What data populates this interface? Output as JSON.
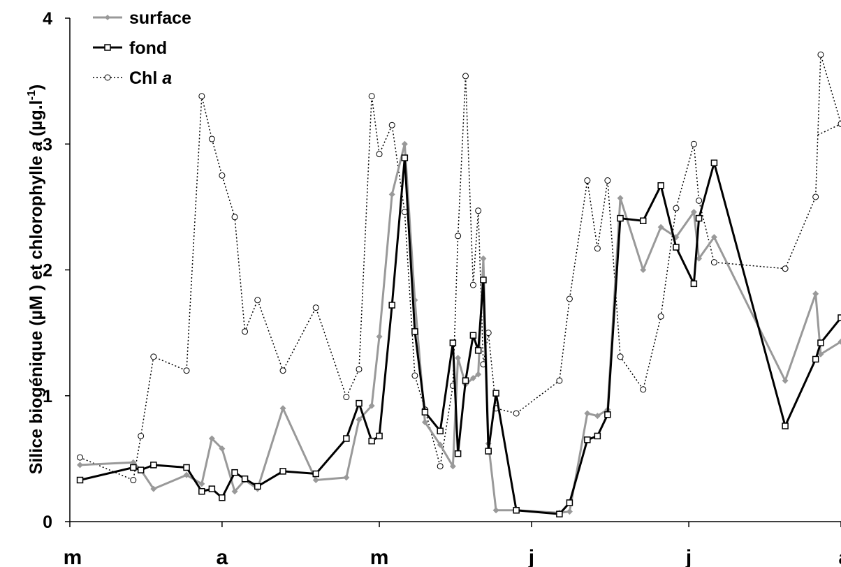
{
  "chart_data": {
    "type": "line",
    "ylabel": "Silice biogénique (µM ) et chlorophylle",
    "ylabel_italic": "a",
    "ylabel_unit": "(µg.l",
    "ylabel_sup": "-1",
    "ylabel_close": ")",
    "ylim": [
      0,
      4
    ],
    "yticks": [
      "0",
      "1",
      "2",
      "3",
      "4"
    ],
    "xlim": [
      0,
      152
    ],
    "month_labels": [
      "m",
      "a",
      "m",
      "j",
      "j",
      "a"
    ],
    "month_positions": [
      0,
      30,
      61,
      91,
      122,
      152
    ],
    "grid": false,
    "legend_position": "top-left",
    "series": [
      {
        "name": "surface",
        "color": "#999999",
        "line_style": "solid",
        "marker": "diamond",
        "x": [
          2,
          12.5,
          14,
          16.5,
          23,
          26,
          28,
          30,
          32.5,
          34.5,
          37,
          42,
          48.5,
          54.5,
          57,
          59.5,
          61,
          63.5,
          66,
          68,
          70,
          73,
          75.5,
          76.5,
          78,
          79.5,
          80.5,
          81.5,
          82.5,
          84,
          88,
          96.5,
          98.5,
          102,
          104,
          106,
          108.5,
          113,
          116.5,
          119.5,
          123,
          124,
          127,
          141,
          147,
          148,
          152
        ],
        "y": [
          0.45,
          0.47,
          0.41,
          0.26,
          0.37,
          0.3,
          0.66,
          0.58,
          0.24,
          0.33,
          0.26,
          0.9,
          0.33,
          0.35,
          0.81,
          0.92,
          1.47,
          2.6,
          3.0,
          1.76,
          0.79,
          0.61,
          0.44,
          1.3,
          1.09,
          1.14,
          1.17,
          2.09,
          0.62,
          0.09,
          0.09,
          0.07,
          0.08,
          0.86,
          0.84,
          0.89,
          2.57,
          2.0,
          2.34,
          2.26,
          2.46,
          2.09,
          2.26,
          1.12,
          1.81,
          1.33,
          1.43
        ]
      },
      {
        "name": "fond",
        "color": "#000000",
        "line_style": "solid",
        "marker": "square",
        "x": [
          2,
          12.5,
          14,
          16.5,
          23,
          26,
          28,
          30,
          32.5,
          34.5,
          37,
          42,
          48.5,
          54.5,
          57,
          59.5,
          61,
          63.5,
          66,
          68,
          70,
          73,
          75.5,
          76.5,
          78,
          79.5,
          80.5,
          81.5,
          82.5,
          84,
          88,
          96.5,
          98.5,
          102,
          104,
          106,
          108.5,
          113,
          116.5,
          119.5,
          123,
          124,
          127,
          141,
          147,
          148,
          152
        ],
        "y": [
          0.33,
          0.43,
          0.41,
          0.45,
          0.43,
          0.24,
          0.26,
          0.19,
          0.39,
          0.34,
          0.28,
          0.4,
          0.38,
          0.66,
          0.94,
          0.64,
          0.68,
          1.72,
          2.89,
          1.51,
          0.87,
          0.72,
          1.42,
          0.54,
          1.12,
          1.48,
          1.36,
          1.92,
          0.56,
          1.02,
          0.09,
          0.06,
          0.15,
          0.65,
          0.68,
          0.85,
          2.41,
          2.39,
          2.67,
          2.18,
          1.89,
          2.41,
          2.85,
          0.76,
          1.29,
          1.42,
          1.62
        ]
      },
      {
        "name": "Chl a",
        "color": "#000000",
        "line_style": "dotted",
        "marker": "circle",
        "x": [
          2,
          12.5,
          14,
          16.5,
          23,
          26,
          28,
          30,
          32.5,
          34.5,
          37,
          42,
          48.5,
          54.5,
          57,
          59.5,
          61,
          63.5,
          66,
          68,
          70,
          73,
          75.5,
          76.5,
          78,
          79.5,
          80.5,
          81.5,
          82.5,
          84,
          88,
          96.5,
          98.5,
          102,
          104,
          106,
          108.5,
          113,
          116.5,
          119.5,
          123,
          124,
          127,
          141,
          147,
          148,
          152
        ],
        "y": [
          0.51,
          0.33,
          0.68,
          1.31,
          1.2,
          3.38,
          3.04,
          2.75,
          2.42,
          1.51,
          1.76,
          1.2,
          1.7,
          0.99,
          1.21,
          3.38,
          2.92,
          3.15,
          2.46,
          1.16,
          0.89,
          0.44,
          1.08,
          2.27,
          3.54,
          1.88,
          2.47,
          1.25,
          1.5,
          0.9,
          0.86,
          1.12,
          1.77,
          2.71,
          2.17,
          2.71,
          1.31,
          1.05,
          1.63,
          2.49,
          3.0,
          2.55,
          2.06,
          2.01,
          2.58,
          3.71,
          3.16
        ]
      }
    ],
    "chl_tail_y": 3.07
  }
}
